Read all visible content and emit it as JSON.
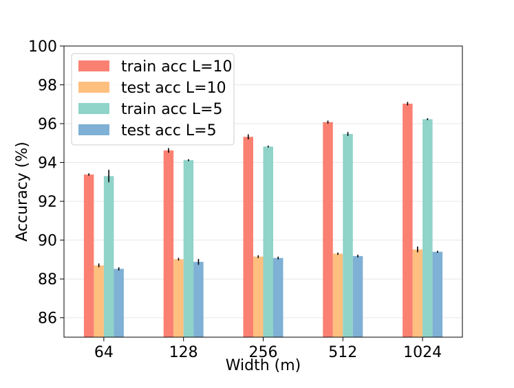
{
  "chart_data": {
    "type": "bar",
    "xlabel": "Width (m)",
    "ylabel": "Accuracy (%)",
    "ylim": [
      85,
      100
    ],
    "yticks": [
      86,
      88,
      90,
      92,
      94,
      96,
      98,
      100
    ],
    "grid": "horizontal",
    "legend_position": "top-left",
    "categories": [
      "64",
      "128",
      "256",
      "512",
      "1024"
    ],
    "series": [
      {
        "name": "train acc L=10",
        "color": "#fa8072",
        "values": [
          93.38,
          94.62,
          95.32,
          96.08,
          97.03
        ],
        "errors": [
          0.06,
          0.12,
          0.13,
          0.08,
          0.09
        ]
      },
      {
        "name": "test acc L=10",
        "color": "#ffbf7f",
        "values": [
          88.7,
          89.02,
          89.15,
          89.3,
          89.52
        ],
        "errors": [
          0.1,
          0.07,
          0.07,
          0.06,
          0.15
        ]
      },
      {
        "name": "train acc L=5",
        "color": "#8fd3c9",
        "values": [
          93.3,
          94.12,
          94.82,
          95.47,
          96.23
        ],
        "errors": [
          0.32,
          0.05,
          0.05,
          0.1,
          0.05
        ]
      },
      {
        "name": "test acc L=5",
        "color": "#7fb0d5",
        "values": [
          88.52,
          88.88,
          89.08,
          89.18,
          89.4
        ],
        "errors": [
          0.08,
          0.15,
          0.07,
          0.07,
          0.05
        ]
      }
    ]
  }
}
